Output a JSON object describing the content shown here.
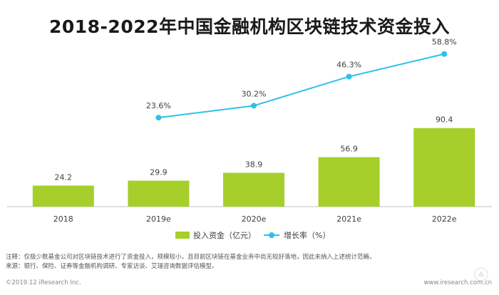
{
  "colors": {
    "bar": "#a6cf2b",
    "line": "#2ec1e6",
    "axis": "#bfbfbf",
    "text": "#404040"
  },
  "chart_data": {
    "type": "bar",
    "title": "2018-2022年中国金融机构区块链技术资金投入",
    "categories": [
      "2018",
      "2019e",
      "2020e",
      "2021e",
      "2022e"
    ],
    "series": [
      {
        "name": "投入资金（亿元）",
        "type": "bar",
        "values": [
          24.2,
          29.9,
          38.9,
          56.9,
          90.4
        ],
        "labels": [
          "24.2",
          "29.9",
          "38.9",
          "56.9",
          "90.4"
        ]
      },
      {
        "name": "增长率（%）",
        "type": "line",
        "x": [
          "2019e",
          "2020e",
          "2021e",
          "2022e"
        ],
        "values": [
          23.6,
          30.2,
          46.3,
          58.8
        ],
        "labels": [
          "23.6%",
          "30.2%",
          "46.3%",
          "58.8%"
        ]
      }
    ],
    "ylim_bar": [
      0,
      100
    ],
    "ylim_line": [
      0,
      65
    ],
    "legend_position": "bottom-center"
  },
  "notes": {
    "note": "注释：仅极少数基金公司对区块链技术进行了资金投入，规模较小，且目前区块链在基金业务中尚无较好落地，因此未纳入上述统计范畴。",
    "source": "来源：银行、保险、证券等金融机构调研、专家访谈、艾瑞咨询数据评估模型。"
  },
  "footer": {
    "copyright": "©2019.12 iResearch Inc.",
    "website": "www.iresearch.com.cn"
  }
}
